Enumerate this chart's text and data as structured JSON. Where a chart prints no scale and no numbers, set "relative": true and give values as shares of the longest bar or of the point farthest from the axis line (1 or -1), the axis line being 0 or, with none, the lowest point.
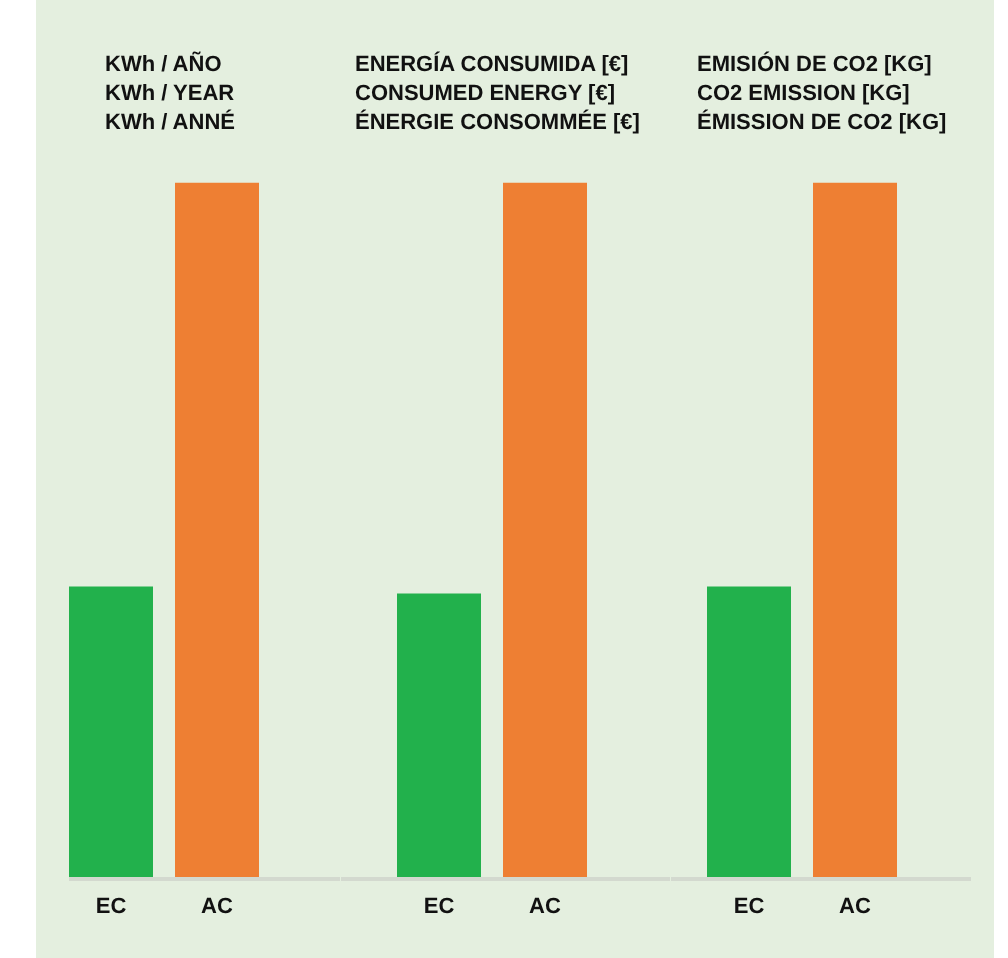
{
  "chart_data": [
    {
      "type": "bar",
      "title": "KWh / AÑO\nKWh / YEAR\nKWh / ANNÉ",
      "categories": [
        "EC",
        "AC"
      ],
      "values": [
        0.42,
        1
      ],
      "colors": [
        "#22b14c",
        "#ee7f33"
      ],
      "relative": true
    },
    {
      "type": "bar",
      "title": "ENERGÍA CONSUMIDA [€]\nCONSUMED ENERGY [€]\nÉNERGIE CONSOMMÉE [€]",
      "categories": [
        "EC",
        "AC"
      ],
      "values": [
        0.41,
        1
      ],
      "colors": [
        "#22b14c",
        "#ee7f33"
      ],
      "relative": true
    },
    {
      "type": "bar",
      "title": "EMISIÓN DE CO2 [KG]\nCO2 EMISSION [KG]\nÉMISSION DE CO2 [KG]",
      "categories": [
        "EC",
        "AC"
      ],
      "values": [
        0.42,
        1
      ],
      "colors": [
        "#22b14c",
        "#ee7f33"
      ],
      "relative": true
    }
  ]
}
